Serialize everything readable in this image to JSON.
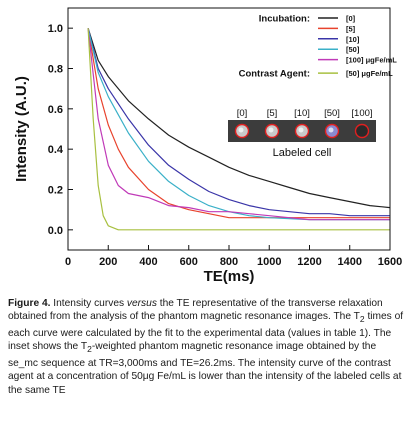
{
  "chart_data": {
    "type": "line",
    "xlabel": "TE(ms)",
    "ylabel": "Intensity (A.U.)",
    "xlim": [
      0,
      1600
    ],
    "ylim": [
      -0.1,
      1.1
    ],
    "xticks": [
      0,
      200,
      400,
      600,
      800,
      1000,
      1200,
      1400,
      1600
    ],
    "yticks": [
      0.0,
      0.2,
      0.4,
      0.6,
      0.8,
      1.0
    ],
    "ytick_labels": [
      "0.0",
      "0.2",
      "0.4",
      "0.6",
      "0.8",
      "1.0"
    ],
    "grid": false,
    "legend_position": "top-right",
    "legend_groups": [
      {
        "title": "Incubation:",
        "series": [
          "[0]",
          "[5]",
          "[10]",
          "[50]",
          "[100] μgFe/mL"
        ]
      },
      {
        "title": "Contrast Agent:",
        "series": [
          "[50] μgFe/mL"
        ]
      }
    ],
    "series": [
      {
        "name": "[0]",
        "color": "#222222",
        "x": [
          100,
          150,
          200,
          300,
          400,
          500,
          600,
          700,
          800,
          900,
          1000,
          1100,
          1200,
          1300,
          1400,
          1500,
          1600
        ],
        "y": [
          1.0,
          0.84,
          0.76,
          0.64,
          0.55,
          0.47,
          0.41,
          0.36,
          0.31,
          0.27,
          0.24,
          0.21,
          0.18,
          0.16,
          0.14,
          0.12,
          0.11
        ]
      },
      {
        "name": "[5]",
        "color": "#e8432d",
        "x": [
          100,
          150,
          200,
          250,
          300,
          400,
          500,
          600,
          700,
          800,
          900,
          1000,
          1200,
          1400,
          1600
        ],
        "y": [
          1.0,
          0.7,
          0.52,
          0.4,
          0.31,
          0.2,
          0.13,
          0.1,
          0.08,
          0.06,
          0.06,
          0.06,
          0.06,
          0.06,
          0.06
        ]
      },
      {
        "name": "[10]",
        "color": "#3a35a8",
        "x": [
          100,
          150,
          200,
          300,
          400,
          500,
          600,
          700,
          800,
          900,
          1000,
          1100,
          1200,
          1300,
          1400,
          1500,
          1600
        ],
        "y": [
          1.0,
          0.8,
          0.7,
          0.55,
          0.42,
          0.32,
          0.25,
          0.19,
          0.15,
          0.12,
          0.1,
          0.09,
          0.08,
          0.08,
          0.07,
          0.07,
          0.07
        ]
      },
      {
        "name": "[50]",
        "color": "#3ab0c8",
        "x": [
          100,
          150,
          200,
          300,
          400,
          500,
          600,
          700,
          800,
          900,
          1000,
          1200,
          1400,
          1600
        ],
        "y": [
          1.0,
          0.78,
          0.66,
          0.48,
          0.34,
          0.24,
          0.17,
          0.12,
          0.09,
          0.07,
          0.06,
          0.05,
          0.05,
          0.05
        ]
      },
      {
        "name": "[100] μgFe/mL",
        "color": "#c03ab8",
        "x": [
          100,
          150,
          200,
          250,
          300,
          400,
          500,
          600,
          700,
          800,
          900,
          1000,
          1200,
          1400,
          1600
        ],
        "y": [
          1.0,
          0.55,
          0.32,
          0.22,
          0.18,
          0.16,
          0.12,
          0.11,
          0.09,
          0.09,
          0.08,
          0.07,
          0.05,
          0.05,
          0.05
        ]
      },
      {
        "name": "[50] μgFe/mL",
        "color": "#a8c040",
        "x": [
          100,
          125,
          150,
          175,
          200,
          250,
          300,
          400,
          600,
          800,
          1000,
          1200,
          1400,
          1600
        ],
        "y": [
          1.0,
          0.55,
          0.22,
          0.07,
          0.02,
          0.0,
          0.0,
          0.0,
          0.0,
          0.0,
          0.0,
          0.0,
          0.0,
          0.0
        ]
      }
    ],
    "inset": {
      "labels": [
        "[0]",
        "[5]",
        "[10]",
        "[50]",
        "[100]"
      ],
      "caption": "Labeled cell"
    }
  },
  "caption": {
    "label": "Figure 4.",
    "text_1": " Intensity curves ",
    "text_italic": "versus",
    "text_2": " the TE representative of the transverse relaxation obtained from the analysis of the phantom magnetic resonance images. The T",
    "sub_1": "2",
    "text_3": " times of each curve were calculated by the fit to the experimental data (values in table 1). The inset shows the T",
    "sub_2": "2",
    "text_4": "-weighted phantom magnetic resonance image obtained by the se_mc sequence at TR=3,000ms and TE=26.2ms. The intensity curve of the contrast agent at a concentration of 50μg Fe/mL is lower than the intensity of the labeled cells at the same TE"
  }
}
